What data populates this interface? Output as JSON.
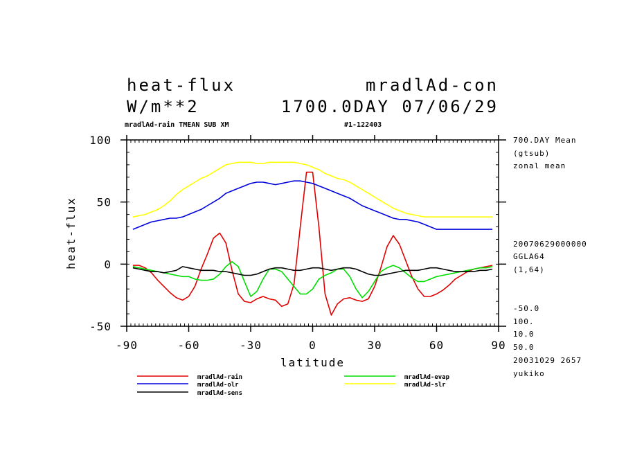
{
  "header": {
    "title_left": "heat-flux",
    "title_right": "mradlAd-con",
    "units": "W/m**2",
    "date_line": "1700.0DAY 07/06/29",
    "subtitle_left": "mradlAd-rain  TMEAN SUB XM",
    "subtitle_right": "#1-122403"
  },
  "side_info": {
    "line1": "700.DAY Mean",
    "line2": "(gtsub)",
    "line3": "zonal mean",
    "line4": "20070629000000",
    "line5": "GGLA64",
    "line6": "(1,64)",
    "line7": "-50.0",
    "line8": "100.",
    "line9": "10.0",
    "line10": "50.0",
    "line11": "20031029    2657",
    "line12": "yukiko"
  },
  "chart_data": {
    "type": "line",
    "xlabel": "latitude",
    "ylabel": "heat-flux",
    "xlim": [
      -90,
      90
    ],
    "ylim": [
      -50,
      100
    ],
    "xticks": [
      "-90",
      "-60",
      "-30",
      "0",
      "30",
      "60",
      "90"
    ],
    "yticks": [
      "100",
      "50",
      "0",
      "-50"
    ],
    "x": [
      -87,
      -84,
      -81,
      -78,
      -75,
      -72,
      -69,
      -66,
      -63,
      -60,
      -57,
      -54,
      -51,
      -48,
      -45,
      -42,
      -39,
      -36,
      -33,
      -30,
      -27,
      -24,
      -21,
      -18,
      -15,
      -12,
      -9,
      -6,
      -3,
      0,
      3,
      6,
      9,
      12,
      15,
      18,
      21,
      24,
      27,
      30,
      33,
      36,
      39,
      42,
      45,
      48,
      51,
      54,
      57,
      60,
      63,
      66,
      69,
      72,
      75,
      78,
      81,
      84,
      87
    ],
    "series": [
      {
        "name": "mradlAd-rain",
        "color": "#e00000",
        "values": [
          -1,
          -1,
          -3,
          -7,
          -13,
          -18,
          -23,
          -27,
          -29,
          -26,
          -18,
          -4,
          8,
          21,
          25,
          17,
          -5,
          -24,
          -30,
          -31,
          -28,
          -26,
          -28,
          -29,
          -34,
          -32,
          -16,
          30,
          74,
          74,
          30,
          -24,
          -41,
          -32,
          -28,
          -27,
          -29,
          -30,
          -28,
          -18,
          -3,
          14,
          23,
          16,
          3,
          -10,
          -20,
          -26,
          -26,
          -24,
          -21,
          -17,
          -12,
          -9,
          -6,
          -4,
          -3,
          -2,
          -1
        ]
      },
      {
        "name": "mradlAd-evap",
        "color": "#00dd00",
        "values": [
          -2,
          -3,
          -4,
          -5,
          -6,
          -7,
          -8,
          -9,
          -10,
          -10,
          -12,
          -13,
          -13,
          -12,
          -8,
          -2,
          2,
          -2,
          -14,
          -26,
          -22,
          -12,
          -4,
          -4,
          -6,
          -12,
          -18,
          -24,
          -24,
          -20,
          -12,
          -9,
          -7,
          -4,
          -4,
          -10,
          -20,
          -27,
          -22,
          -14,
          -6,
          -3,
          -1,
          -3,
          -7,
          -11,
          -14,
          -14,
          -12,
          -10,
          -9,
          -8,
          -7,
          -6,
          -5,
          -4,
          -3,
          -3,
          -2
        ]
      },
      {
        "name": "mradlAd-olr",
        "color": "#0000dd",
        "values": [
          28,
          30,
          32,
          34,
          35,
          36,
          37,
          37,
          38,
          40,
          42,
          44,
          47,
          50,
          53,
          57,
          59,
          61,
          63,
          65,
          66,
          66,
          65,
          64,
          65,
          66,
          67,
          67,
          66,
          65,
          63,
          61,
          59,
          57,
          55,
          53,
          50,
          47,
          45,
          43,
          41,
          39,
          37,
          36,
          36,
          35,
          34,
          32,
          30,
          28,
          28,
          28,
          28,
          28,
          28,
          28,
          28,
          28,
          28
        ]
      },
      {
        "name": "mradlAd-slr",
        "color": "#ffff00",
        "values": [
          38,
          39,
          40,
          42,
          44,
          47,
          51,
          56,
          60,
          63,
          66,
          69,
          71,
          74,
          77,
          80,
          81,
          82,
          82,
          82,
          81,
          81,
          82,
          82,
          82,
          82,
          82,
          81,
          80,
          78,
          76,
          73,
          71,
          69,
          68,
          66,
          63,
          60,
          57,
          54,
          51,
          48,
          45,
          43,
          41,
          40,
          39,
          38,
          38,
          38,
          38,
          38,
          38,
          38,
          38,
          38,
          38,
          38,
          38
        ]
      },
      {
        "name": "mradlAd-sens",
        "color": "#000000",
        "values": [
          -3,
          -4,
          -5,
          -6,
          -6,
          -7,
          -6,
          -5,
          -2,
          -3,
          -4,
          -5,
          -5,
          -5,
          -6,
          -6,
          -7,
          -8,
          -9,
          -9,
          -8,
          -6,
          -4,
          -3,
          -3,
          -4,
          -5,
          -5,
          -4,
          -3,
          -3,
          -4,
          -5,
          -4,
          -3,
          -3,
          -4,
          -6,
          -8,
          -9,
          -9,
          -8,
          -7,
          -6,
          -5,
          -5,
          -5,
          -4,
          -3,
          -3,
          -4,
          -5,
          -6,
          -6,
          -6,
          -6,
          -5,
          -5,
          -4
        ]
      }
    ]
  }
}
